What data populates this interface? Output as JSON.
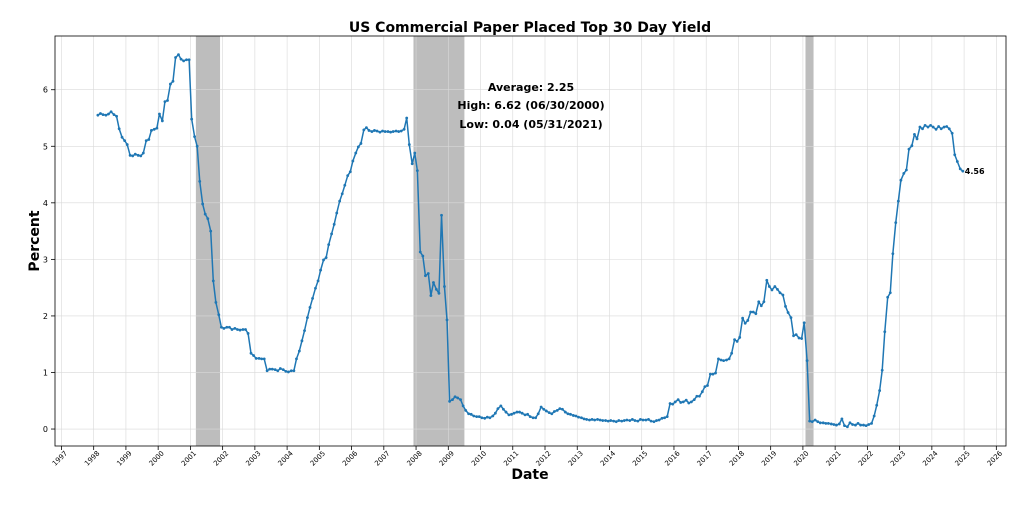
{
  "chart_data": {
    "type": "line",
    "title": "US Commercial Paper Placed Top 30 Day Yield",
    "xlabel": "Date",
    "ylabel": "Percent",
    "xlim": [
      1996.8,
      2026.3
    ],
    "ylim": [
      -0.3,
      6.95
    ],
    "grid": true,
    "y_ticks": [
      0,
      1,
      2,
      3,
      4,
      5,
      6
    ],
    "x_ticks": [
      "1997",
      "1998",
      "1999",
      "2000",
      "2001",
      "2002",
      "2003",
      "2004",
      "2005",
      "2006",
      "2007",
      "2008",
      "2009",
      "2010",
      "2011",
      "2012",
      "2013",
      "2014",
      "2015",
      "2016",
      "2017",
      "2018",
      "2019",
      "2020",
      "2021",
      "2022",
      "2023",
      "2024",
      "2025",
      "2026"
    ],
    "line_color": "#1f77b4",
    "recession_color": "#999999",
    "recessions": [
      {
        "start": 2001.17,
        "end": 2001.92
      },
      {
        "start": 2007.92,
        "end": 2009.5
      },
      {
        "start": 2020.08,
        "end": 2020.33
      }
    ],
    "stats": {
      "average": "Average: 2.25",
      "high": "High: 6.62 (06/30/2000)",
      "low": "Low: 0.04 (05/31/2021)"
    },
    "last_value_label": "4.56",
    "series": [
      {
        "x": [
          1998.13,
          1998.21,
          1998.29,
          1998.38,
          1998.46,
          1998.54,
          1998.63,
          1998.71,
          1998.79,
          1998.88,
          1998.96,
          1999.04,
          1999.13,
          1999.21,
          1999.29,
          1999.38,
          1999.46,
          1999.54,
          1999.63,
          1999.71,
          1999.79,
          1999.88,
          1999.96,
          2000.04,
          2000.13,
          2000.21,
          2000.29,
          2000.38,
          2000.46,
          2000.54,
          2000.63,
          2000.71,
          2000.79,
          2000.88,
          2000.96,
          2001.04,
          2001.13,
          2001.21,
          2001.29,
          2001.38,
          2001.46,
          2001.54,
          2001.63,
          2001.71,
          2001.79,
          2001.88,
          2001.96,
          2002.04,
          2002.13,
          2002.21,
          2002.29,
          2002.38,
          2002.46,
          2002.54,
          2002.63,
          2002.71,
          2002.79,
          2002.88,
          2002.96,
          2003.04,
          2003.13,
          2003.21,
          2003.29,
          2003.38,
          2003.46,
          2003.54,
          2003.63,
          2003.71,
          2003.79,
          2003.88,
          2003.96,
          2004.04,
          2004.13,
          2004.21,
          2004.29,
          2004.38,
          2004.46,
          2004.54,
          2004.63,
          2004.71,
          2004.79,
          2004.88,
          2004.96,
          2005.04,
          2005.13,
          2005.21,
          2005.29,
          2005.38,
          2005.46,
          2005.54,
          2005.63,
          2005.71,
          2005.79,
          2005.88,
          2005.96,
          2006.04,
          2006.13,
          2006.21,
          2006.29,
          2006.38,
          2006.46,
          2006.54,
          2006.63,
          2006.71,
          2006.79,
          2006.88,
          2006.96,
          2007.04,
          2007.13,
          2007.21,
          2007.29,
          2007.38,
          2007.46,
          2007.54,
          2007.63,
          2007.71,
          2007.79,
          2007.88,
          2007.96,
          2008.04,
          2008.13,
          2008.21,
          2008.29,
          2008.38,
          2008.46,
          2008.54,
          2008.63,
          2008.71,
          2008.79,
          2008.88,
          2008.96,
          2009.04,
          2009.13,
          2009.21,
          2009.29,
          2009.38,
          2009.46,
          2009.54,
          2009.63,
          2009.71,
          2009.79,
          2009.88,
          2009.96,
          2010.04,
          2010.13,
          2010.21,
          2010.29,
          2010.38,
          2010.46,
          2010.54,
          2010.63,
          2010.71,
          2010.79,
          2010.88,
          2010.96,
          2011.04,
          2011.13,
          2011.21,
          2011.29,
          2011.38,
          2011.46,
          2011.54,
          2011.63,
          2011.71,
          2011.79,
          2011.88,
          2011.96,
          2012.04,
          2012.13,
          2012.21,
          2012.29,
          2012.38,
          2012.46,
          2012.54,
          2012.63,
          2012.71,
          2012.79,
          2012.88,
          2012.96,
          2013.04,
          2013.13,
          2013.21,
          2013.29,
          2013.38,
          2013.46,
          2013.54,
          2013.63,
          2013.71,
          2013.79,
          2013.88,
          2013.96,
          2014.04,
          2014.13,
          2014.21,
          2014.29,
          2014.38,
          2014.46,
          2014.54,
          2014.63,
          2014.71,
          2014.79,
          2014.88,
          2014.96,
          2015.04,
          2015.13,
          2015.21,
          2015.29,
          2015.38,
          2015.46,
          2015.54,
          2015.63,
          2015.71,
          2015.79,
          2015.88,
          2015.96,
          2016.04,
          2016.13,
          2016.21,
          2016.29,
          2016.38,
          2016.46,
          2016.54,
          2016.63,
          2016.71,
          2016.79,
          2016.88,
          2016.96,
          2017.04,
          2017.13,
          2017.21,
          2017.29,
          2017.38,
          2017.46,
          2017.54,
          2017.63,
          2017.71,
          2017.79,
          2017.88,
          2017.96,
          2018.04,
          2018.13,
          2018.21,
          2018.29,
          2018.38,
          2018.46,
          2018.54,
          2018.63,
          2018.71,
          2018.79,
          2018.88,
          2018.96,
          2019.04,
          2019.13,
          2019.21,
          2019.29,
          2019.38,
          2019.46,
          2019.54,
          2019.63,
          2019.71,
          2019.79,
          2019.88,
          2019.96,
          2020.04,
          2020.13,
          2020.21,
          2020.29,
          2020.38,
          2020.46,
          2020.54,
          2020.63,
          2020.71,
          2020.79,
          2020.88,
          2020.96,
          2021.04,
          2021.13,
          2021.21,
          2021.29,
          2021.38,
          2021.46,
          2021.54,
          2021.63,
          2021.71,
          2021.79,
          2021.88,
          2021.96,
          2022.04,
          2022.13,
          2022.21,
          2022.29,
          2022.38,
          2022.46,
          2022.54,
          2022.63,
          2022.71,
          2022.79,
          2022.88,
          2022.96,
          2023.04,
          2023.13,
          2023.21,
          2023.29,
          2023.38,
          2023.46,
          2023.54,
          2023.63,
          2023.71,
          2023.79,
          2023.88,
          2023.96,
          2024.04,
          2024.13,
          2024.21,
          2024.29,
          2024.38,
          2024.46,
          2024.54,
          2024.63,
          2024.71,
          2024.79,
          2024.88,
          2024.96
        ],
        "y": [
          5.55,
          5.58,
          5.56,
          5.55,
          5.57,
          5.61,
          5.56,
          5.53,
          5.31,
          5.16,
          5.1,
          5.03,
          4.84,
          4.83,
          4.86,
          4.84,
          4.83,
          4.88,
          5.1,
          5.12,
          5.28,
          5.3,
          5.32,
          5.57,
          5.45,
          5.79,
          5.81,
          6.1,
          6.15,
          6.57,
          6.62,
          6.54,
          6.51,
          6.53,
          6.53,
          5.48,
          5.17,
          5.0,
          4.38,
          3.98,
          3.8,
          3.72,
          3.5,
          2.62,
          2.24,
          2.02,
          1.8,
          1.78,
          1.8,
          1.8,
          1.76,
          1.78,
          1.76,
          1.75,
          1.76,
          1.76,
          1.69,
          1.34,
          1.3,
          1.25,
          1.25,
          1.24,
          1.24,
          1.03,
          1.06,
          1.06,
          1.05,
          1.03,
          1.07,
          1.05,
          1.02,
          1.01,
          1.03,
          1.03,
          1.24,
          1.38,
          1.56,
          1.74,
          1.97,
          2.15,
          2.31,
          2.49,
          2.62,
          2.81,
          2.99,
          3.03,
          3.26,
          3.45,
          3.62,
          3.82,
          4.03,
          4.16,
          4.31,
          4.48,
          4.55,
          4.74,
          4.88,
          4.99,
          5.05,
          5.29,
          5.33,
          5.28,
          5.26,
          5.28,
          5.27,
          5.25,
          5.27,
          5.26,
          5.26,
          5.25,
          5.26,
          5.27,
          5.26,
          5.27,
          5.3,
          5.5,
          5.03,
          4.69,
          4.88,
          4.57,
          3.13,
          3.06,
          2.71,
          2.75,
          2.36,
          2.59,
          2.47,
          2.4,
          3.78,
          2.52,
          1.93,
          0.49,
          0.52,
          0.57,
          0.55,
          0.52,
          0.41,
          0.33,
          0.27,
          0.26,
          0.23,
          0.22,
          0.22,
          0.2,
          0.19,
          0.21,
          0.2,
          0.23,
          0.28,
          0.36,
          0.41,
          0.35,
          0.3,
          0.25,
          0.26,
          0.28,
          0.3,
          0.3,
          0.28,
          0.25,
          0.26,
          0.22,
          0.2,
          0.2,
          0.27,
          0.39,
          0.35,
          0.32,
          0.29,
          0.27,
          0.31,
          0.33,
          0.36,
          0.35,
          0.3,
          0.27,
          0.26,
          0.24,
          0.23,
          0.21,
          0.2,
          0.18,
          0.17,
          0.16,
          0.17,
          0.16,
          0.17,
          0.16,
          0.15,
          0.15,
          0.14,
          0.15,
          0.14,
          0.13,
          0.15,
          0.14,
          0.15,
          0.16,
          0.15,
          0.17,
          0.15,
          0.14,
          0.17,
          0.16,
          0.16,
          0.17,
          0.14,
          0.13,
          0.15,
          0.16,
          0.19,
          0.2,
          0.22,
          0.45,
          0.44,
          0.48,
          0.52,
          0.47,
          0.48,
          0.51,
          0.46,
          0.48,
          0.52,
          0.58,
          0.58,
          0.66,
          0.75,
          0.77,
          0.97,
          0.97,
          0.99,
          1.24,
          1.22,
          1.21,
          1.22,
          1.24,
          1.34,
          1.58,
          1.55,
          1.62,
          1.96,
          1.87,
          1.92,
          2.07,
          2.07,
          2.04,
          2.25,
          2.18,
          2.25,
          2.63,
          2.52,
          2.46,
          2.52,
          2.47,
          2.41,
          2.37,
          2.17,
          2.06,
          1.97,
          1.65,
          1.67,
          1.61,
          1.6,
          1.88,
          1.21,
          0.14,
          0.13,
          0.16,
          0.13,
          0.11,
          0.11,
          0.1,
          0.1,
          0.09,
          0.08,
          0.07,
          0.09,
          0.18,
          0.06,
          0.04,
          0.11,
          0.08,
          0.07,
          0.1,
          0.07,
          0.07,
          0.06,
          0.08,
          0.1,
          0.23,
          0.42,
          0.68,
          1.04,
          1.72,
          2.33,
          2.41,
          3.1,
          3.65,
          4.03,
          4.4,
          4.52,
          4.58,
          4.95,
          5.01,
          5.21,
          5.13,
          5.34,
          5.31,
          5.37,
          5.34,
          5.37,
          5.34,
          5.3,
          5.35,
          5.31,
          5.34,
          5.35,
          5.31,
          5.23,
          4.85,
          4.73,
          4.6,
          4.56
        ]
      }
    ]
  }
}
